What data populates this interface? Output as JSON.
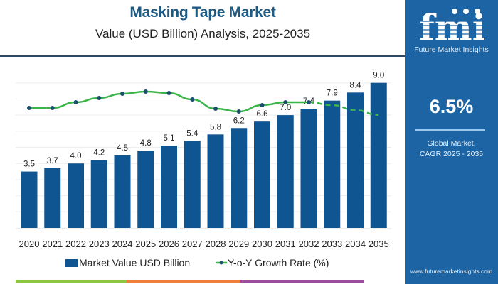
{
  "header": {
    "title": "Masking Tape Market",
    "subtitle": "Value (USD Billion) Analysis, 2025-2035"
  },
  "side_panel": {
    "logo_letters": "fmi",
    "logo_caption": "Future Market Insights",
    "cagr_value": "6.5%",
    "cagr_label_line1": "Global Market,",
    "cagr_label_line2": "CAGR 2025 - 2035",
    "website": "www.futuremarketinsights.com"
  },
  "colors": {
    "bar": "#0f5591",
    "line": "#3bb54a",
    "marker": "#1c4f6e",
    "title": "#1d5a84",
    "panel": "#1c64a4",
    "strip": [
      "#8dc63f",
      "#f07f3c",
      "#9b4d9c"
    ]
  },
  "chart_data": {
    "type": "bar",
    "title": "Masking Tape Market",
    "subtitle": "Value (USD Billion) Analysis, 2025-2035",
    "categories": [
      "2020",
      "2021",
      "2022",
      "2023",
      "2024",
      "2025",
      "2026",
      "2027",
      "2028",
      "2029",
      "2030",
      "2031",
      "2032",
      "2033",
      "2034",
      "2035"
    ],
    "series": [
      {
        "name": "Market Value USD Billion",
        "type": "bar",
        "values": [
          3.5,
          3.7,
          4.0,
          4.2,
          4.5,
          4.8,
          5.1,
          5.4,
          5.8,
          6.2,
          6.6,
          7.0,
          7.4,
          7.9,
          8.4,
          9.0
        ],
        "data_labels": [
          "3.5",
          "3.7",
          "4.0",
          "4.2",
          "4.5",
          "4.8",
          "5.1",
          "5.4",
          "5.8",
          "6.2",
          "6.6",
          "7.0",
          "7.4",
          "7.9",
          "8.4",
          "9.0"
        ]
      },
      {
        "name": "Y-o-Y Growth Rate (%)",
        "type": "line",
        "values": [
          6.0,
          6.0,
          6.4,
          6.7,
          7.0,
          7.15,
          7.05,
          6.6,
          5.95,
          5.75,
          6.2,
          6.4,
          6.4,
          6.2,
          5.85,
          5.5
        ],
        "projected_from": "2032",
        "estimated_unlabeled": true
      }
    ],
    "ylim": [
      0,
      9.5
    ],
    "y_axis_shown": false,
    "grid": true,
    "legend": "bottom"
  }
}
